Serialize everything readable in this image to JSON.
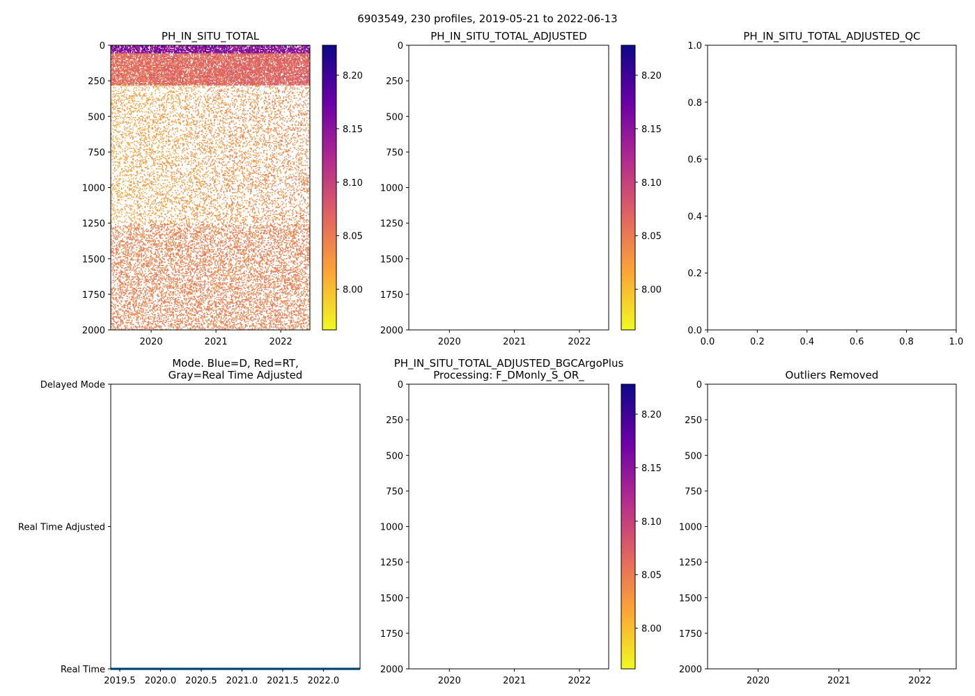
{
  "suptitle": "6903549, 230 profiles, 2019-05-21 to 2022-06-13",
  "colors": {
    "cmap": [
      "#f0f921",
      "#fca636",
      "#e16462",
      "#b12a90",
      "#6a00a8",
      "#0d0887"
    ],
    "mode_line": "#1f77b4"
  },
  "chart_data": [
    {
      "id": "p1",
      "type": "heatmap",
      "title": [
        "PH_IN_SITU_TOTAL"
      ],
      "xlim": [
        2019.376,
        2022.45
      ],
      "ylim": [
        2000,
        0
      ],
      "xticks": [
        "2020",
        "2021",
        "2022"
      ],
      "xtickvals": [
        2020,
        2021,
        2022
      ],
      "yticks": [
        "0",
        "250",
        "500",
        "750",
        "1000",
        "1250",
        "1500",
        "1750",
        "2000"
      ],
      "ytickvals": [
        0,
        250,
        500,
        750,
        1000,
        1250,
        1500,
        1750,
        2000
      ],
      "n_profiles": 230,
      "value_range": [
        7.96,
        8.23
      ],
      "profile_structure": [
        {
          "depth": [
            0,
            50
          ],
          "value": 8.15
        },
        {
          "depth": [
            50,
            280
          ],
          "value": 8.06
        },
        {
          "depth": [
            280,
            1250
          ],
          "value": 8.02
        },
        {
          "depth": [
            1250,
            2000
          ],
          "value": 8.045
        }
      ],
      "colorbar": {
        "ticks": [
          "8.00",
          "8.05",
          "8.10",
          "8.15",
          "8.20"
        ],
        "tickvals": [
          8.0,
          8.05,
          8.1,
          8.15,
          8.2
        ],
        "range": [
          7.962,
          8.228
        ]
      }
    },
    {
      "id": "p2",
      "type": "heatmap",
      "title": [
        "PH_IN_SITU_TOTAL_ADJUSTED"
      ],
      "xlim": [
        2019.376,
        2022.45
      ],
      "ylim": [
        2000,
        0
      ],
      "xticks": [
        "2020",
        "2021",
        "2022"
      ],
      "xtickvals": [
        2020,
        2021,
        2022
      ],
      "yticks": [
        "0",
        "250",
        "500",
        "750",
        "1000",
        "1250",
        "1500",
        "1750",
        "2000"
      ],
      "ytickvals": [
        0,
        250,
        500,
        750,
        1000,
        1250,
        1500,
        1750,
        2000
      ],
      "colorbar": {
        "ticks": [
          "8.00",
          "8.05",
          "8.10",
          "8.15",
          "8.20"
        ],
        "tickvals": [
          8.0,
          8.05,
          8.1,
          8.15,
          8.2
        ],
        "range": [
          7.962,
          8.228
        ]
      }
    },
    {
      "id": "p3",
      "type": "scatter",
      "title": [
        "PH_IN_SITU_TOTAL_ADJUSTED_QC"
      ],
      "xlim": [
        0,
        1
      ],
      "ylim": [
        0,
        1
      ],
      "xticks": [
        "0.0",
        "0.2",
        "0.4",
        "0.6",
        "0.8",
        "1.0"
      ],
      "xtickvals": [
        0,
        0.2,
        0.4,
        0.6,
        0.8,
        1
      ],
      "yticks": [
        "0.0",
        "0.2",
        "0.4",
        "0.6",
        "0.8",
        "1.0"
      ],
      "ytickvals": [
        0,
        0.2,
        0.4,
        0.6,
        0.8,
        1
      ]
    },
    {
      "id": "p4",
      "type": "line",
      "title": [
        "Mode. Blue=D, Red=RT,",
        "Gray=Real Time Adjusted"
      ],
      "xlim": [
        2019.389,
        2022.45
      ],
      "ylim": [
        0,
        2
      ],
      "xticks": [
        "2019.5",
        "2020.0",
        "2020.5",
        "2021.0",
        "2021.5",
        "2022.0"
      ],
      "xtickvals": [
        2019.5,
        2020,
        2020.5,
        2021,
        2021.5,
        2022
      ],
      "yticks": [
        "Real Time",
        "Real Time Adjusted",
        "Delayed Mode"
      ],
      "ytickvals": [
        0,
        1,
        2
      ],
      "series": [
        {
          "name": "Real Time",
          "x": [
            2019.385,
            2022.45
          ],
          "y": [
            0,
            0
          ]
        }
      ]
    },
    {
      "id": "p5",
      "type": "heatmap",
      "title": [
        "PH_IN_SITU_TOTAL_ADJUSTED_BGCArgoPlus",
        "Processing: F_DMonly_S_OR_"
      ],
      "xlim": [
        2019.376,
        2022.45
      ],
      "ylim": [
        2000,
        0
      ],
      "xticks": [
        "2020",
        "2021",
        "2022"
      ],
      "xtickvals": [
        2020,
        2021,
        2022
      ],
      "yticks": [
        "0",
        "250",
        "500",
        "750",
        "1000",
        "1250",
        "1500",
        "1750",
        "2000"
      ],
      "ytickvals": [
        0,
        250,
        500,
        750,
        1000,
        1250,
        1500,
        1750,
        2000
      ],
      "colorbar": {
        "ticks": [
          "8.00",
          "8.05",
          "8.10",
          "8.15",
          "8.20"
        ],
        "tickvals": [
          8.0,
          8.05,
          8.1,
          8.15,
          8.2
        ],
        "range": [
          7.962,
          8.228
        ]
      }
    },
    {
      "id": "p6",
      "type": "heatmap",
      "title": [
        "Outliers Removed"
      ],
      "xlim": [
        2019.376,
        2022.45
      ],
      "ylim": [
        2000,
        0
      ],
      "xticks": [
        "2020",
        "2021",
        "2022"
      ],
      "xtickvals": [
        2020,
        2021,
        2022
      ],
      "yticks": [
        "0",
        "250",
        "500",
        "750",
        "1000",
        "1250",
        "1500",
        "1750",
        "2000"
      ],
      "ytickvals": [
        0,
        250,
        500,
        750,
        1000,
        1250,
        1500,
        1750,
        2000
      ]
    }
  ]
}
